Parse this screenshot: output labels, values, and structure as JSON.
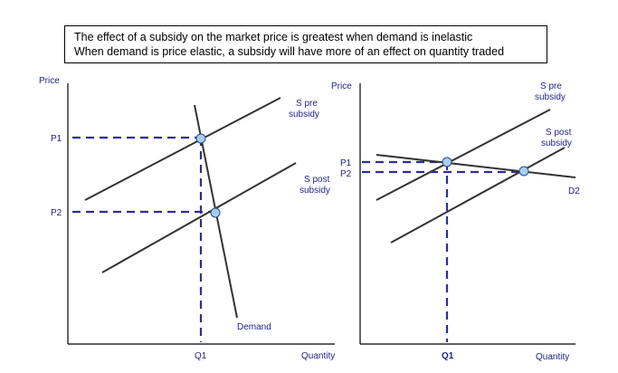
{
  "caption": {
    "line1": "The  effect of a subsidy on the market price is greatest when  demand is inelastic",
    "line2": "When  demand is price elastic, a subsidy will have  more of an effect on quantity traded"
  },
  "colors": {
    "axis": "#000000",
    "curve": "#333333",
    "label": "#1f1f8a",
    "dash": "#2e2e9a",
    "point_fill": "#a9cdf0",
    "point_stroke": "#1f4f8a"
  },
  "left_diagram": {
    "y_axis_label": "Price",
    "x_axis_label": "Quantity",
    "p1_label": "P1",
    "p2_label": "P2",
    "q1_label": "Q1",
    "supply_pre_label_1": "S pre",
    "supply_pre_label_2": "subsidy",
    "supply_post_label_1": "S post",
    "supply_post_label_2": "subsidy",
    "demand_label": "Demand"
  },
  "right_diagram": {
    "y_axis_label": "Price",
    "x_axis_label": "Quantity",
    "p1_label": "P1",
    "p2_label": "P2",
    "q1_label": "Q1",
    "supply_pre_label_1": "S pre",
    "supply_pre_label_2": "subsidy",
    "supply_post_label_1": "S post",
    "supply_post_label_2": "subsidy",
    "demand_label": "D2"
  }
}
